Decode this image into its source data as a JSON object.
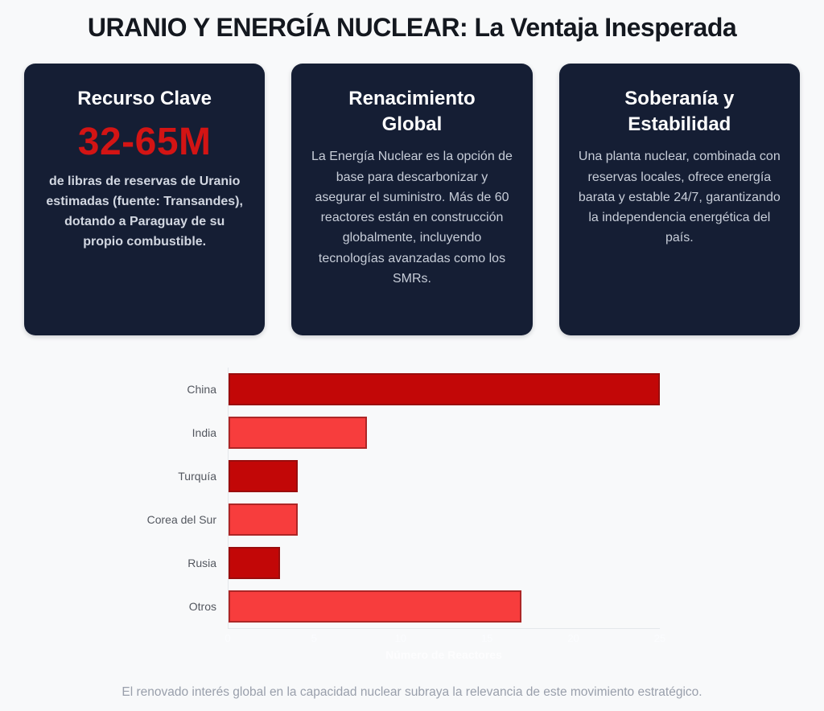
{
  "title": "URANIO Y ENERGÍA NUCLEAR: La Ventaja Inesperada",
  "cards": [
    {
      "title": "Recurso Clave",
      "highlight": "32-65M",
      "body": "de libras de reservas de Uranio estimadas (fuente: Transandes), dotando a Paraguay de su propio combustible."
    },
    {
      "title": "Renacimiento Global",
      "body": "La Energía Nuclear es la opción de base para descarbonizar y asegurar el suministro. Más de 60 reactores están en construcción globalmente, incluyendo tecnologías avanzadas como los SMRs."
    },
    {
      "title": "Soberanía y Estabilidad",
      "body": "Una planta nuclear, combinada con reservas locales, ofrece energía barata y estable 24/7, garantizando la independencia energética del país."
    }
  ],
  "chart_data": {
    "type": "bar",
    "orientation": "horizontal",
    "categories": [
      "China",
      "India",
      "Turquía",
      "Corea del Sur",
      "Rusia",
      "Otros"
    ],
    "values": [
      25,
      8,
      4,
      4,
      3,
      17
    ],
    "bar_fill_colors": [
      "#c20707",
      "#f73d3d",
      "#c20707",
      "#f73d3d",
      "#c20707",
      "#f73d3d"
    ],
    "bar_border_colors": [
      "#9a0d0d",
      "#ad2626",
      "#9a0d0d",
      "#ad2626",
      "#9a0d0d",
      "#ad2626"
    ],
    "title": "",
    "xlabel": "Número de Reactores",
    "ylabel": "",
    "xlim": [
      0,
      25
    ],
    "x_ticks": [
      0,
      5,
      10,
      15,
      20,
      25
    ],
    "grid": false,
    "legend": false,
    "tick_label_color": "#fbfcfe",
    "axis_label_color": "#fdfdfe",
    "category_label_color": "#53575f"
  },
  "caption": "El renovado interés global en la capacidad nuclear subraya la relevancia de este movimiento estratégico.",
  "colors": {
    "page_background": "#f8f9fa",
    "card_background": "#151e34",
    "accent_red": "#d31414",
    "bar_dark_red": "#c20707",
    "bar_bright_red": "#f73d3d",
    "title_text": "#14181f",
    "card_text": "#c7cdd8",
    "caption_text": "#999fab",
    "axis_line": "#e4e7eb"
  }
}
